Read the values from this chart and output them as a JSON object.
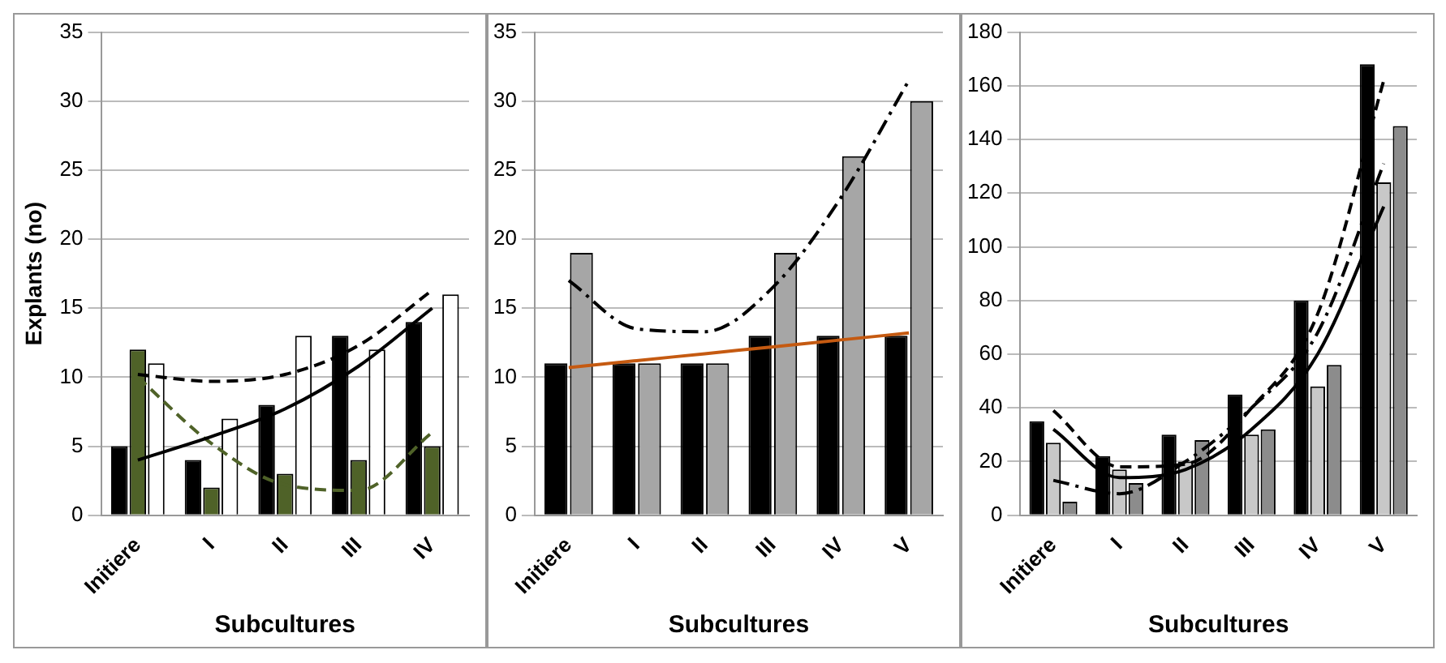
{
  "chart_data": [
    {
      "type": "bar",
      "ylabel": "Explants (no)",
      "xlabel": "Subcultures",
      "categories": [
        "Initiere",
        "I",
        "II",
        "III",
        "IV"
      ],
      "ylim": [
        0,
        35
      ],
      "yticks": [
        0,
        5,
        10,
        15,
        20,
        25,
        30,
        35
      ],
      "grid": "y",
      "legend": false,
      "marker": "none",
      "series": [
        {
          "color": "#000000",
          "values": [
            5,
            4,
            8,
            13,
            14
          ]
        },
        {
          "color": "#4f6228",
          "values": [
            12,
            2,
            3,
            4,
            5
          ]
        },
        {
          "color": "#ffffff",
          "values": [
            11,
            7,
            13,
            12,
            16
          ]
        },
        {
          "type": "line",
          "color": "#000000",
          "line_style": "solid",
          "values": [
            4,
            5.7,
            7.7,
            10.8,
            15
          ]
        },
        {
          "type": "line",
          "color": "#000000",
          "line_style": "dashed",
          "values": [
            10.2,
            9.7,
            10.2,
            12.3,
            16.3
          ]
        },
        {
          "type": "line",
          "color": "#4f6228",
          "line_style": "dashed",
          "values": [
            10,
            5.2,
            2.2,
            1.8,
            6
          ]
        }
      ]
    },
    {
      "type": "bar",
      "xlabel": "Subcultures",
      "categories": [
        "Initiere",
        "I",
        "II",
        "III",
        "IV",
        "V"
      ],
      "ylim": [
        0,
        35
      ],
      "yticks": [
        0,
        5,
        10,
        15,
        20,
        25,
        30,
        35
      ],
      "grid": "y",
      "legend": false,
      "marker": "none",
      "series": [
        {
          "color": "#000000",
          "values": [
            11,
            11,
            11,
            13,
            13,
            13
          ]
        },
        {
          "color": "#a6a6a6",
          "values": [
            19,
            11,
            11,
            19,
            26,
            30
          ]
        },
        {
          "type": "line",
          "color": "#c55a11",
          "line_style": "solid",
          "values": [
            10.7,
            11.2,
            11.7,
            12.2,
            12.7,
            13.2
          ]
        },
        {
          "type": "line",
          "color": "#000000",
          "line_style": "dotted",
          "values": [
            17,
            13.5,
            13.3,
            16.5,
            23,
            31.5
          ]
        }
      ]
    },
    {
      "type": "bar",
      "xlabel": "Subcultures",
      "categories": [
        "Initiere",
        "I",
        "II",
        "III",
        "IV",
        "V"
      ],
      "ylim": [
        0,
        180
      ],
      "yticks": [
        0,
        20,
        40,
        60,
        80,
        100,
        120,
        140,
        160,
        180
      ],
      "grid": "y",
      "legend": false,
      "marker": "none",
      "series": [
        {
          "color": "#000000",
          "values": [
            35,
            22,
            30,
            45,
            80,
            168
          ]
        },
        {
          "color": "#c8c8c8",
          "values": [
            27,
            17,
            20,
            30,
            48,
            124
          ]
        },
        {
          "color": "#8c8c8c",
          "values": [
            5,
            12,
            28,
            32,
            56,
            145
          ]
        },
        {
          "type": "line",
          "color": "#000000",
          "line_style": "solid",
          "values": [
            32,
            14,
            17,
            32,
            60,
            115
          ]
        },
        {
          "type": "line",
          "color": "#000000",
          "line_style": "dashed",
          "values": [
            39,
            18,
            19,
            40,
            75,
            162
          ]
        },
        {
          "type": "line",
          "color": "#000000",
          "line_style": "dotted",
          "values": [
            13,
            8,
            20,
            40,
            68,
            131
          ]
        }
      ]
    }
  ]
}
